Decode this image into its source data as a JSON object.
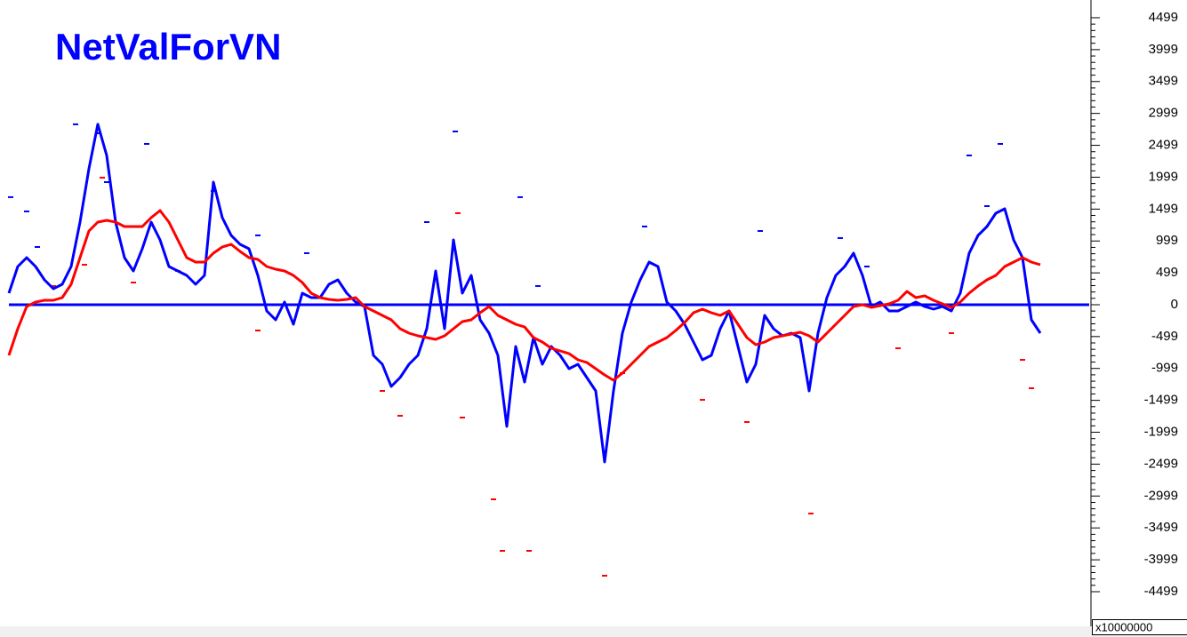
{
  "chart_data": {
    "type": "line",
    "title": "NetValForVN",
    "title_color": "#0000ff",
    "y_unit_label": "x10000000",
    "x": [
      0,
      1,
      2,
      3,
      4,
      5,
      6,
      7,
      8,
      9,
      10,
      11,
      12,
      13,
      14,
      15,
      16,
      17,
      18,
      19,
      20,
      21,
      22,
      23,
      24,
      25,
      26,
      27,
      28,
      29,
      30,
      31,
      32,
      33,
      34,
      35,
      36,
      37,
      38,
      39,
      40,
      41,
      42,
      43,
      44,
      45,
      46,
      47,
      48,
      49,
      50,
      51,
      52,
      53,
      54,
      55,
      56,
      57,
      58,
      59,
      60,
      61,
      62,
      63,
      64,
      65,
      66,
      67,
      68,
      69,
      70,
      71,
      72,
      73,
      74,
      75,
      76,
      77,
      78,
      79,
      80,
      81,
      82,
      83,
      84,
      85,
      86,
      87,
      88,
      89,
      90,
      91,
      92,
      93,
      94,
      95,
      96,
      97,
      98,
      99,
      100,
      101,
      102,
      103,
      104,
      105,
      106,
      107,
      108,
      109,
      110,
      111,
      112,
      113,
      114,
      115,
      116
    ],
    "xlim": [
      0,
      121.5
    ],
    "ylim": [
      -5042,
      4777
    ],
    "yticks": [
      4499,
      3999,
      3499,
      2999,
      2499,
      1999,
      1499,
      999,
      499,
      0,
      -499,
      -999,
      -1499,
      -1999,
      -2499,
      -2999,
      -3499,
      -3999,
      -4499
    ],
    "zero_line": {
      "value": 0,
      "color": "#0000ff"
    },
    "series": [
      {
        "color": "#0000ff",
        "values": [
          181,
          599,
          738,
          599,
          390,
          251,
          320,
          599,
          1295,
          2131,
          2828,
          2340,
          1295,
          738,
          529,
          877,
          1295,
          1017,
          599,
          529,
          460,
          320,
          460,
          1922,
          1365,
          1087,
          947,
          877,
          460,
          -97,
          -237,
          42,
          -306,
          181,
          111,
          111,
          320,
          390,
          181,
          42,
          -28,
          -794,
          -933,
          -1281,
          -1142,
          -933,
          -794,
          -376,
          529,
          -376,
          1017,
          181,
          460,
          -237,
          -446,
          -794,
          -1908,
          -655,
          -1212,
          -515,
          -933,
          -655,
          -794,
          -1003,
          -933,
          -1142,
          -1351,
          -2465,
          -1351,
          -446,
          42,
          390,
          669,
          599,
          42,
          -97,
          -306,
          -585,
          -864,
          -794,
          -376,
          -97,
          -655,
          -1212,
          -933,
          -167,
          -376,
          -488,
          -446,
          -515,
          -1351,
          -446,
          111,
          460,
          599,
          808,
          460,
          -28,
          42,
          -97,
          -97,
          -28,
          42,
          -28,
          -70,
          -28,
          -97,
          181,
          808,
          1087,
          1226,
          1435,
          1504,
          1017,
          738,
          -237,
          -446
        ]
      },
      {
        "color": "#ff0000",
        "values": [
          -794,
          -376,
          -28,
          42,
          70,
          70,
          111,
          320,
          738,
          1156,
          1295,
          1323,
          1295,
          1226,
          1226,
          1226,
          1365,
          1476,
          1295,
          1017,
          738,
          669,
          669,
          808,
          905,
          947,
          836,
          738,
          710,
          599,
          557,
          529,
          460,
          348,
          181,
          111,
          84,
          70,
          84,
          111,
          -28,
          -97,
          -167,
          -237,
          -376,
          -446,
          -488,
          -515,
          -543,
          -488,
          -376,
          -265,
          -237,
          -125,
          -28,
          -167,
          -237,
          -306,
          -348,
          -515,
          -585,
          -683,
          -724,
          -766,
          -864,
          -905,
          -1003,
          -1100,
          -1184,
          -1073,
          -933,
          -794,
          -655,
          -585,
          -515,
          -404,
          -279,
          -125,
          -70,
          -125,
          -167,
          -97,
          -306,
          -515,
          -627,
          -585,
          -515,
          -488,
          -460,
          -432,
          -488,
          -585,
          -446,
          -306,
          -167,
          -28,
          0,
          -42,
          -14,
          14,
          70,
          209,
          111,
          139,
          70,
          14,
          -42,
          42,
          181,
          293,
          390,
          460,
          599,
          669,
          738,
          669,
          627
        ]
      }
    ],
    "dash_series": [
      {
        "color": "#0000ff",
        "x": [
          0.2,
          2,
          3.2,
          7.5,
          10,
          15.5,
          23,
          50.2,
          57.5,
          11,
          47,
          59.5,
          71.5,
          84.5,
          93.5,
          111.5,
          108,
          110,
          96.5,
          33.5,
          28
        ],
        "values": [
          1686,
          1463,
          905,
          2828,
          2688,
          2521,
          1783,
          2716,
          1686,
          1922,
          1295,
          293,
          1226,
          1156,
          1045,
          2521,
          2340,
          1546,
          599,
          808,
          1087
        ]
      },
      {
        "color": "#ff0000",
        "x": [
          5,
          8.5,
          10.5,
          14,
          19,
          28,
          42,
          44,
          51,
          54.5,
          55.5,
          58.5,
          67,
          69,
          78,
          83,
          90.2,
          100,
          115,
          114,
          106,
          50.5
        ],
        "values": [
          293,
          627,
          1992,
          348,
          529,
          -404,
          -1351,
          -1741,
          -1769,
          -3051,
          -3858,
          -3858,
          -4248,
          -1073,
          -1491,
          -1839,
          -3274,
          -683,
          -1309,
          -864,
          -446,
          1435
        ]
      }
    ]
  }
}
